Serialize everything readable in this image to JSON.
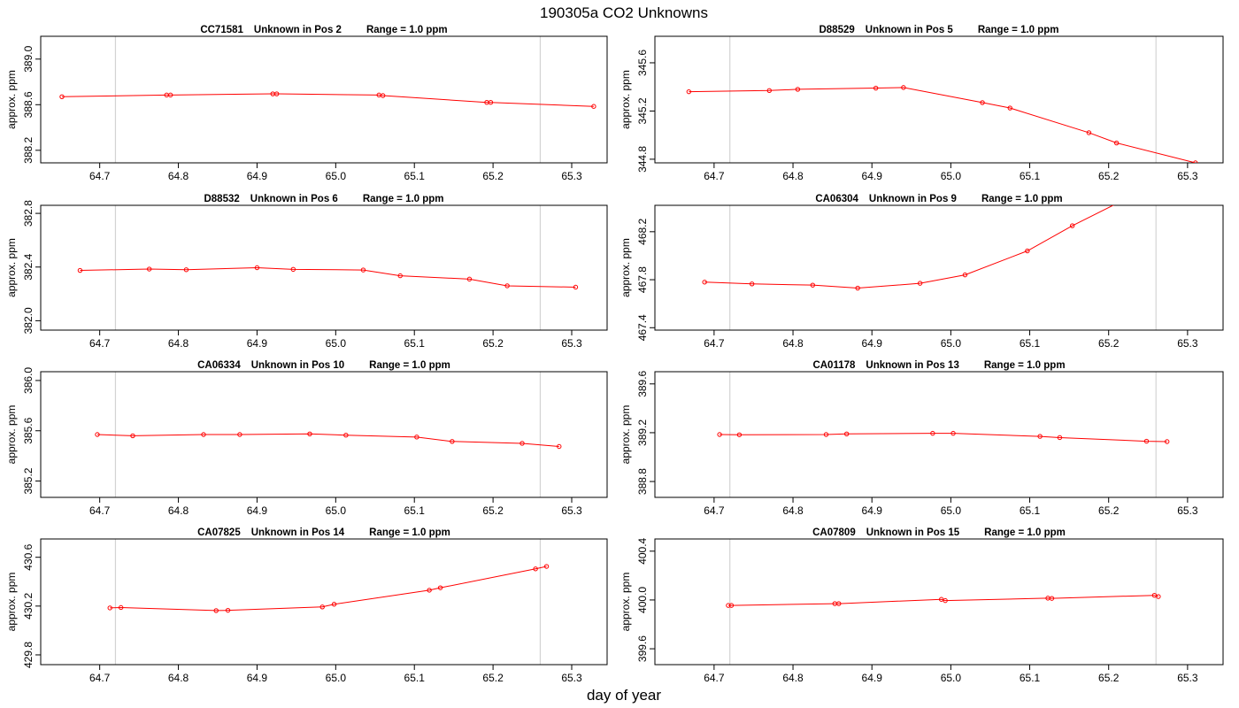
{
  "figure": {
    "title": "190305a  CO2 Unknowns",
    "xlabel": "day of year"
  },
  "colors": {
    "series": "#ff0000",
    "marker_lines": "#d3d3d3",
    "axes": "#000000"
  },
  "chart_data": [
    {
      "type": "line",
      "title_parts": [
        "CC71581",
        "Unknown in Pos 2",
        "Range = 1.0 ppm"
      ],
      "ylabel": "approx. ppm",
      "xlim": [
        64.625,
        65.345
      ],
      "ylim": [
        388.09,
        389.2
      ],
      "xticks": [
        "64.7",
        "64.8",
        "64.9",
        "65.0",
        "65.1",
        "65.2",
        "65.3"
      ],
      "yticks": [
        "388.2",
        "388.6",
        "389.0"
      ],
      "vlines": [
        64.72,
        65.26
      ],
      "x": [
        64.652,
        64.785,
        64.79,
        64.92,
        64.925,
        65.055,
        65.06,
        65.192,
        65.197,
        65.328
      ],
      "y": [
        388.67,
        388.685,
        388.685,
        388.695,
        388.695,
        388.685,
        388.68,
        388.62,
        388.62,
        388.585
      ]
    },
    {
      "type": "line",
      "title_parts": [
        "D88529",
        "Unknown in Pos 5",
        "Range = 1.0 ppm"
      ],
      "ylabel": "approx. ppm",
      "xlim": [
        64.625,
        65.345
      ],
      "ylim": [
        344.77,
        345.82
      ],
      "xticks": [
        "64.7",
        "64.8",
        "64.9",
        "65.0",
        "65.1",
        "65.2",
        "65.3"
      ],
      "yticks": [
        "344.8",
        "345.2",
        "345.6"
      ],
      "vlines": [
        64.72,
        65.26
      ],
      "x": [
        64.668,
        64.77,
        64.806,
        64.905,
        64.94,
        65.04,
        65.075,
        65.175,
        65.21,
        65.31
      ],
      "y": [
        345.36,
        345.37,
        345.38,
        345.39,
        345.395,
        345.27,
        345.225,
        345.02,
        344.935,
        344.77
      ]
    },
    {
      "type": "line",
      "title_parts": [
        "D88532",
        "Unknown in Pos 6",
        "Range = 1.0 ppm"
      ],
      "ylabel": "approx. ppm",
      "xlim": [
        64.625,
        65.345
      ],
      "ylim": [
        381.93,
        382.86
      ],
      "xticks": [
        "64.7",
        "64.8",
        "64.9",
        "65.0",
        "65.1",
        "65.2",
        "65.3"
      ],
      "yticks": [
        "382.0",
        "382.4",
        "382.8"
      ],
      "vlines": [
        64.72,
        65.26
      ],
      "x": [
        64.675,
        64.763,
        64.81,
        64.9,
        64.946,
        65.035,
        65.082,
        65.17,
        65.218,
        65.305
      ],
      "y": [
        382.375,
        382.385,
        382.38,
        382.395,
        382.383,
        382.378,
        382.335,
        382.31,
        382.26,
        382.25
      ]
    },
    {
      "type": "line",
      "title_parts": [
        "CA06304",
        "Unknown in Pos 9",
        "Range = 1.0 ppm"
      ],
      "ylabel": "approx. ppm",
      "xlim": [
        64.625,
        65.345
      ],
      "ylim": [
        467.38,
        468.42
      ],
      "xticks": [
        "64.7",
        "64.8",
        "64.9",
        "65.0",
        "65.1",
        "65.2",
        "65.3"
      ],
      "yticks": [
        "467.4",
        "467.8",
        "468.2"
      ],
      "vlines": [
        64.72,
        65.26
      ],
      "x": [
        64.688,
        64.748,
        64.825,
        64.882,
        64.961,
        65.018,
        65.097,
        65.154,
        65.23
      ],
      "y": [
        467.78,
        467.765,
        467.755,
        467.73,
        467.77,
        467.84,
        468.04,
        468.25,
        468.5
      ]
    },
    {
      "type": "line",
      "title_parts": [
        "CA06334",
        "Unknown in Pos 10",
        "Range = 1.0 ppm"
      ],
      "ylabel": "approx. ppm",
      "xlim": [
        64.625,
        65.345
      ],
      "ylim": [
        385.07,
        386.07
      ],
      "xticks": [
        "64.7",
        "64.8",
        "64.9",
        "65.0",
        "65.1",
        "65.2",
        "65.3"
      ],
      "yticks": [
        "385.2",
        "385.6",
        "386.0"
      ],
      "vlines": [
        64.72,
        65.26
      ],
      "x": [
        64.697,
        64.742,
        64.832,
        64.878,
        64.967,
        65.013,
        65.103,
        65.148,
        65.237,
        65.284
      ],
      "y": [
        385.57,
        385.56,
        385.57,
        385.57,
        385.575,
        385.565,
        385.55,
        385.515,
        385.5,
        385.475
      ]
    },
    {
      "type": "line",
      "title_parts": [
        "CA01178",
        "Unknown in Pos 13",
        "Range = 1.0 ppm"
      ],
      "ylabel": "approx. ppm",
      "xlim": [
        64.625,
        65.345
      ],
      "ylim": [
        388.67,
        389.7
      ],
      "xticks": [
        "64.7",
        "64.8",
        "64.9",
        "65.0",
        "65.1",
        "65.2",
        "65.3"
      ],
      "yticks": [
        "388.8",
        "389.2",
        "389.6"
      ],
      "vlines": [
        64.72,
        65.26
      ],
      "x": [
        64.707,
        64.732,
        64.842,
        64.868,
        64.977,
        65.003,
        65.113,
        65.138,
        65.248,
        65.274
      ],
      "y": [
        389.185,
        389.183,
        389.185,
        389.19,
        389.195,
        389.195,
        389.17,
        389.16,
        389.13,
        389.127
      ]
    },
    {
      "type": "line",
      "title_parts": [
        "CA07825",
        "Unknown in Pos 14",
        "Range = 1.0 ppm"
      ],
      "ylabel": "approx. ppm",
      "xlim": [
        64.625,
        65.345
      ],
      "ylim": [
        429.72,
        430.75
      ],
      "xticks": [
        "64.7",
        "64.8",
        "64.9",
        "65.0",
        "65.1",
        "65.2",
        "65.3"
      ],
      "yticks": [
        "429.8",
        "430.2",
        "430.6"
      ],
      "vlines": [
        64.72,
        65.26
      ],
      "x": [
        64.713,
        64.727,
        64.848,
        64.863,
        64.983,
        64.998,
        65.119,
        65.133,
        65.254,
        65.268
      ],
      "y": [
        430.185,
        430.188,
        430.163,
        430.165,
        430.193,
        430.215,
        430.33,
        430.35,
        430.505,
        430.525
      ]
    },
    {
      "type": "line",
      "title_parts": [
        "CA07809",
        "Unknown in Pos 15",
        "Range = 1.0 ppm"
      ],
      "ylabel": "approx. ppm",
      "xlim": [
        64.625,
        65.345
      ],
      "ylim": [
        399.47,
        400.5
      ],
      "xticks": [
        "64.7",
        "64.8",
        "64.9",
        "65.0",
        "65.1",
        "65.2",
        "65.3"
      ],
      "yticks": [
        "399.6",
        "400.0",
        "400.4"
      ],
      "vlines": [
        64.72,
        65.26
      ],
      "x": [
        64.718,
        64.722,
        64.853,
        64.858,
        64.988,
        64.993,
        65.123,
        65.128,
        65.258,
        65.263
      ],
      "y": [
        399.955,
        399.955,
        399.97,
        399.97,
        400.005,
        399.995,
        400.015,
        400.013,
        400.038,
        400.028
      ]
    }
  ]
}
